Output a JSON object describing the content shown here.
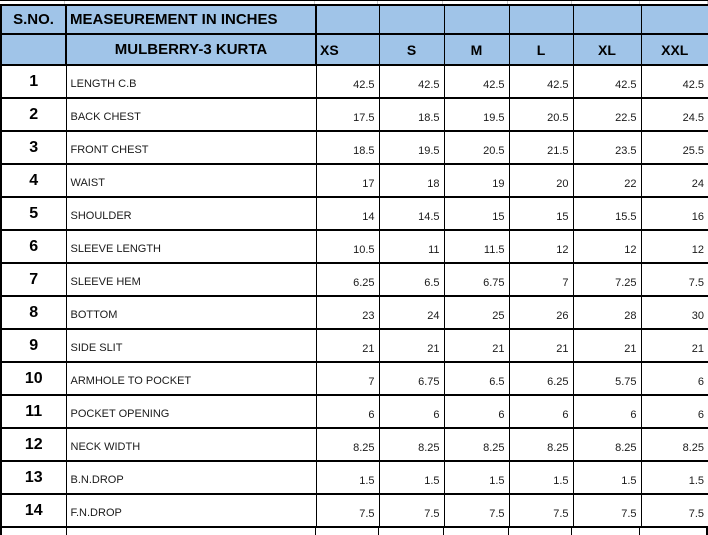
{
  "table": {
    "sno_header": "S.NO.",
    "title": "MEASEUREMENT IN INCHES",
    "subtitle": "MULBERRY-3 KURTA",
    "sizes": [
      "XS",
      "S",
      "M",
      "L",
      "XL",
      "XXL"
    ],
    "rows": [
      {
        "no": "1",
        "name": "LENGTH C.B",
        "values": [
          "42.5",
          "42.5",
          "42.5",
          "42.5",
          "42.5",
          "42.5"
        ]
      },
      {
        "no": "2",
        "name": "BACK CHEST",
        "values": [
          "17.5",
          "18.5",
          "19.5",
          "20.5",
          "22.5",
          "24.5"
        ]
      },
      {
        "no": "3",
        "name": "FRONT CHEST",
        "values": [
          "18.5",
          "19.5",
          "20.5",
          "21.5",
          "23.5",
          "25.5"
        ]
      },
      {
        "no": "4",
        "name": "WAIST",
        "values": [
          "17",
          "18",
          "19",
          "20",
          "22",
          "24"
        ]
      },
      {
        "no": "5",
        "name": "SHOULDER",
        "values": [
          "14",
          "14.5",
          "15",
          "15",
          "15.5",
          "16"
        ]
      },
      {
        "no": "6",
        "name": "SLEEVE LENGTH",
        "values": [
          "10.5",
          "11",
          "11.5",
          "12",
          "12",
          "12"
        ]
      },
      {
        "no": "7",
        "name": "SLEEVE HEM",
        "values": [
          "6.25",
          "6.5",
          "6.75",
          "7",
          "7.25",
          "7.5"
        ]
      },
      {
        "no": "8",
        "name": "BOTTOM",
        "values": [
          "23",
          "24",
          "25",
          "26",
          "28",
          "30"
        ]
      },
      {
        "no": "9",
        "name": "SIDE SLIT",
        "values": [
          "21",
          "21",
          "21",
          "21",
          "21",
          "21"
        ]
      },
      {
        "no": "10",
        "name": "ARMHOLE TO POCKET",
        "values": [
          "7",
          "6.75",
          "6.5",
          "6.25",
          "5.75",
          "6"
        ]
      },
      {
        "no": "11",
        "name": "POCKET OPENING",
        "values": [
          "6",
          "6",
          "6",
          "6",
          "6",
          "6"
        ]
      },
      {
        "no": "12",
        "name": "NECK WIDTH",
        "values": [
          "8.25",
          "8.25",
          "8.25",
          "8.25",
          "8.25",
          "8.25"
        ]
      },
      {
        "no": "13",
        "name": "B.N.DROP",
        "values": [
          "1.5",
          "1.5",
          "1.5",
          "1.5",
          "1.5",
          "1.5"
        ]
      },
      {
        "no": "14",
        "name": "F.N.DROP",
        "values": [
          "7.5",
          "7.5",
          "7.5",
          "7.5",
          "7.5",
          "7.5"
        ]
      }
    ],
    "colors": {
      "header_bg": "#a0c4e8",
      "border": "#000000",
      "text": "#1a1a1a"
    }
  }
}
